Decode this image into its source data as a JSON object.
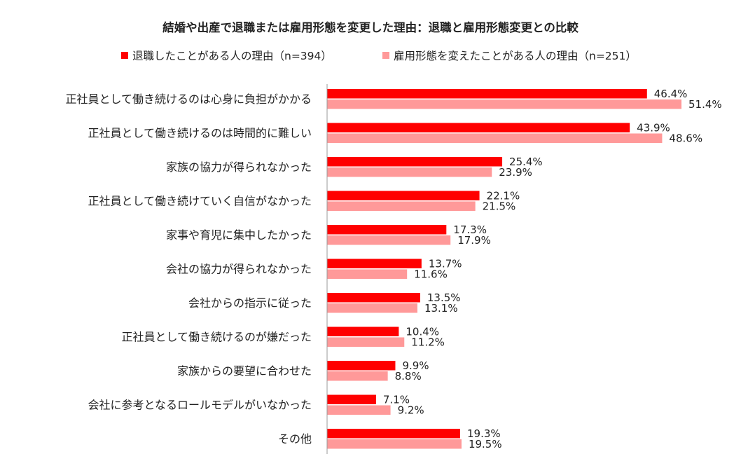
{
  "chart_data": {
    "type": "bar",
    "orientation": "horizontal",
    "title": "結婚や出産で退職または雇用形態を変更した理由：退職と雇用形態変更との比較",
    "legend_position": "top",
    "grid": false,
    "xlim": [
      0,
      60
    ],
    "categories": [
      "正社員として働き続けるのは心身に負担がかかる",
      "正社員として働き続けるのは時間的に難しい",
      "家族の協力が得られなかった",
      "正社員として働き続けていく自信がなかった",
      "家事や育児に集中したかった",
      "会社の協力が得られなかった",
      "会社からの指示に従った",
      "正社員として働き続けるのが嫌だった",
      "家族からの要望に合わせた",
      "会社に参考となるロールモデルがいなかった",
      "その他"
    ],
    "series": [
      {
        "name": "退職したことがある人の理由（n=394）",
        "color": "#ff0000",
        "values": [
          46.4,
          43.9,
          25.4,
          22.1,
          17.3,
          13.7,
          13.5,
          10.4,
          9.9,
          7.1,
          19.3
        ],
        "labels": [
          "46.4%",
          "43.9%",
          "25.4%",
          "22.1%",
          "17.3%",
          "13.7%",
          "13.5%",
          "10.4%",
          "9.9%",
          "7.1%",
          "19.3%"
        ]
      },
      {
        "name": "雇用形態を変えたことがある人の理由（n=251）",
        "color": "#ff9999",
        "values": [
          51.4,
          48.6,
          23.9,
          21.5,
          17.9,
          11.6,
          13.1,
          11.2,
          8.8,
          9.2,
          19.5
        ],
        "labels": [
          "51.4%",
          "48.6%",
          "23.9%",
          "21.5%",
          "17.9%",
          "11.6%",
          "13.1%",
          "11.2%",
          "8.8%",
          "9.2%",
          "19.5%"
        ]
      }
    ]
  }
}
